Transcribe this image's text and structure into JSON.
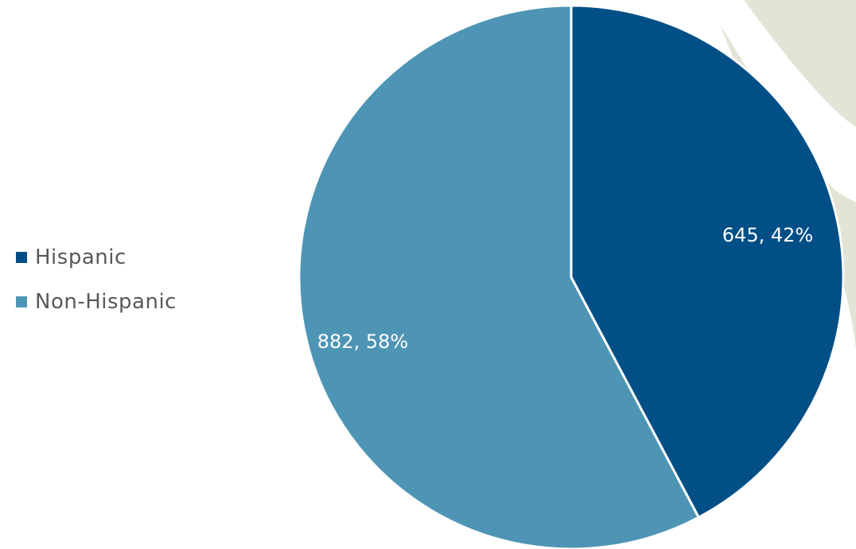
{
  "chart_data": {
    "type": "pie",
    "categories": [
      "Hispanic",
      "Non-Hispanic"
    ],
    "values": [
      645,
      882
    ],
    "percentages": [
      42,
      58
    ],
    "data_labels": [
      "645, 42%",
      "882, 58%"
    ],
    "colors": [
      "#004f86",
      "#4e95b5"
    ],
    "start_angle_deg": 0,
    "direction": "clockwise",
    "legend": "left",
    "legend_items": [
      {
        "label": "Hispanic",
        "color": "#004f86"
      },
      {
        "label": "Non-Hispanic",
        "color": "#4e95b5"
      }
    ]
  },
  "decoration": {
    "arc_color": "#e3e4d6"
  }
}
